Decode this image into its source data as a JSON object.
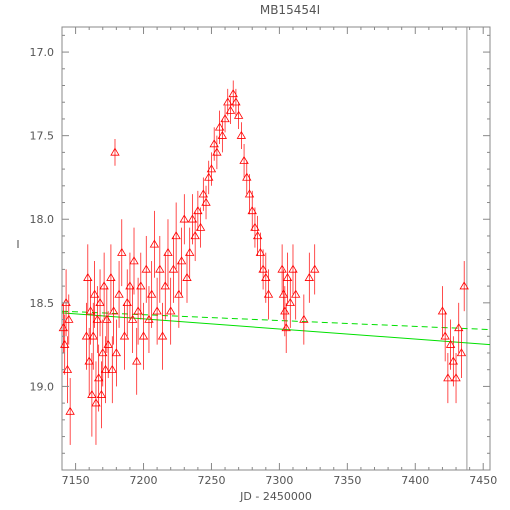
{
  "chart_data": {
    "type": "scatter",
    "title": "MB15454I",
    "xlabel": "JD - 2450000",
    "ylabel": "I",
    "xlim": [
      7140,
      7455
    ],
    "ylim": [
      19.5,
      16.85
    ],
    "y_inverted": true,
    "x_ticks": [
      7150,
      7200,
      7250,
      7300,
      7350,
      7400,
      7450
    ],
    "y_ticks": [
      17.0,
      17.5,
      18.0,
      18.5,
      19.0
    ],
    "y_tick_labels": [
      "17.0",
      "17.5",
      "18.0",
      "18.5",
      "19.0"
    ],
    "grid": false,
    "marker": "triangle",
    "colors": {
      "data": "#ff0000",
      "fit": "#00e000",
      "axis": "#888888",
      "vline": "#999999"
    },
    "series": [
      {
        "points": [
          [
            7141,
            18.65,
            0.15
          ],
          [
            7142,
            18.75,
            0.18
          ],
          [
            7143,
            18.5,
            0.2
          ],
          [
            7144,
            18.9,
            0.2
          ],
          [
            7145,
            18.6,
            0.15
          ],
          [
            7146,
            19.15,
            0.2
          ],
          [
            7158,
            18.7,
            0.2
          ],
          [
            7159,
            18.35,
            0.2
          ],
          [
            7160,
            18.85,
            0.2
          ],
          [
            7161,
            18.55,
            0.2
          ],
          [
            7162,
            19.05,
            0.25
          ],
          [
            7163,
            18.7,
            0.2
          ],
          [
            7164,
            18.45,
            0.2
          ],
          [
            7165,
            19.1,
            0.25
          ],
          [
            7166,
            18.6,
            0.2
          ],
          [
            7167,
            18.95,
            0.2
          ],
          [
            7168,
            18.5,
            0.2
          ],
          [
            7169,
            19.05,
            0.2
          ],
          [
            7170,
            18.8,
            0.2
          ],
          [
            7171,
            18.4,
            0.2
          ],
          [
            7172,
            18.9,
            0.2
          ],
          [
            7173,
            18.6,
            0.2
          ],
          [
            7174,
            18.75,
            0.2
          ],
          [
            7176,
            18.35,
            0.2
          ],
          [
            7177,
            18.9,
            0.2
          ],
          [
            7178,
            18.55,
            0.2
          ],
          [
            7179,
            17.6,
            0.08
          ],
          [
            7180,
            18.8,
            0.2
          ],
          [
            7182,
            18.45,
            0.2
          ],
          [
            7184,
            18.2,
            0.2
          ],
          [
            7186,
            18.7,
            0.2
          ],
          [
            7188,
            18.5,
            0.2
          ],
          [
            7190,
            18.4,
            0.2
          ],
          [
            7192,
            18.6,
            0.2
          ],
          [
            7193,
            18.25,
            0.2
          ],
          [
            7195,
            18.85,
            0.2
          ],
          [
            7196,
            18.55,
            0.2
          ],
          [
            7198,
            18.4,
            0.2
          ],
          [
            7200,
            18.7,
            0.2
          ],
          [
            7202,
            18.3,
            0.2
          ],
          [
            7204,
            18.6,
            0.2
          ],
          [
            7206,
            18.45,
            0.2
          ],
          [
            7208,
            18.15,
            0.2
          ],
          [
            7210,
            18.55,
            0.2
          ],
          [
            7212,
            18.3,
            0.2
          ],
          [
            7214,
            18.7,
            0.2
          ],
          [
            7216,
            18.4,
            0.2
          ],
          [
            7218,
            18.2,
            0.2
          ],
          [
            7220,
            18.55,
            0.2
          ],
          [
            7222,
            18.3,
            0.2
          ],
          [
            7224,
            18.1,
            0.2
          ],
          [
            7226,
            18.45,
            0.2
          ],
          [
            7228,
            18.25,
            0.2
          ],
          [
            7230,
            18.0,
            0.15
          ],
          [
            7232,
            18.35,
            0.15
          ],
          [
            7234,
            18.2,
            0.15
          ],
          [
            7236,
            18.0,
            0.15
          ],
          [
            7238,
            18.1,
            0.15
          ],
          [
            7240,
            17.95,
            0.12
          ],
          [
            7242,
            18.05,
            0.12
          ],
          [
            7244,
            17.85,
            0.1
          ],
          [
            7246,
            17.9,
            0.1
          ],
          [
            7248,
            17.75,
            0.1
          ],
          [
            7250,
            17.7,
            0.1
          ],
          [
            7252,
            17.55,
            0.1
          ],
          [
            7254,
            17.6,
            0.1
          ],
          [
            7256,
            17.45,
            0.1
          ],
          [
            7258,
            17.5,
            0.1
          ],
          [
            7260,
            17.4,
            0.08
          ],
          [
            7262,
            17.3,
            0.08
          ],
          [
            7264,
            17.35,
            0.08
          ],
          [
            7266,
            17.25,
            0.08
          ],
          [
            7268,
            17.3,
            0.08
          ],
          [
            7270,
            17.38,
            0.08
          ],
          [
            7272,
            17.5,
            0.08
          ],
          [
            7274,
            17.65,
            0.1
          ],
          [
            7276,
            17.75,
            0.1
          ],
          [
            7278,
            17.85,
            0.12
          ],
          [
            7280,
            17.95,
            0.12
          ],
          [
            7282,
            18.05,
            0.12
          ],
          [
            7284,
            18.1,
            0.12
          ],
          [
            7286,
            18.2,
            0.12
          ],
          [
            7288,
            18.3,
            0.12
          ],
          [
            7290,
            18.35,
            0.15
          ],
          [
            7292,
            18.45,
            0.15
          ],
          [
            7302,
            18.3,
            0.15
          ],
          [
            7303,
            18.45,
            0.15
          ],
          [
            7304,
            18.55,
            0.15
          ],
          [
            7305,
            18.65,
            0.15
          ],
          [
            7306,
            18.35,
            0.15
          ],
          [
            7308,
            18.5,
            0.15
          ],
          [
            7310,
            18.3,
            0.15
          ],
          [
            7312,
            18.45,
            0.15
          ],
          [
            7318,
            18.6,
            0.15
          ],
          [
            7322,
            18.35,
            0.15
          ],
          [
            7326,
            18.3,
            0.15
          ],
          [
            7420,
            18.55,
            0.15
          ],
          [
            7422,
            18.7,
            0.15
          ],
          [
            7424,
            18.95,
            0.15
          ],
          [
            7426,
            18.75,
            0.15
          ],
          [
            7428,
            18.85,
            0.15
          ],
          [
            7430,
            18.95,
            0.15
          ],
          [
            7432,
            18.65,
            0.15
          ],
          [
            7434,
            18.8,
            0.15
          ],
          [
            7436,
            18.4,
            0.15
          ]
        ]
      }
    ],
    "fit_lines": [
      {
        "style": "solid",
        "x": [
          7140,
          7455
        ],
        "y": [
          18.56,
          18.75
        ]
      },
      {
        "style": "dashed",
        "x": [
          7140,
          7455
        ],
        "y": [
          18.55,
          18.66
        ]
      }
    ],
    "vline_x": 7438
  }
}
